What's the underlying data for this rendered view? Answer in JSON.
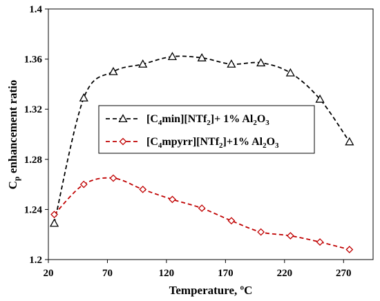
{
  "chart_data": {
    "type": "line",
    "title": "",
    "xlabel": "Temperature, ºC",
    "ylabel": "Cp enhancement ratio",
    "ylabel_main": "C",
    "ylabel_sub": "p",
    "ylabel_rest": " enhancement ratio",
    "xlim": [
      20,
      295
    ],
    "ylim": [
      1.2,
      1.4
    ],
    "xticks": [
      20,
      70,
      120,
      170,
      220,
      270
    ],
    "yticks": [
      1.2,
      1.24,
      1.28,
      1.32,
      1.36,
      1.4
    ],
    "grid": false,
    "legend_position": "center-left",
    "series": [
      {
        "name": "[C4min][NTf2]+ 1% Al2O3",
        "name_parts": [
          "[C",
          "4",
          "min][NTf",
          "2",
          "]+ 1% Al",
          "2",
          "O",
          "3"
        ],
        "color": "#000000",
        "marker": "triangle",
        "x": [
          25,
          50,
          75,
          100,
          125,
          150,
          175,
          200,
          225,
          250,
          275
        ],
        "y": [
          1.229,
          1.329,
          1.35,
          1.356,
          1.362,
          1.361,
          1.356,
          1.357,
          1.349,
          1.328,
          1.294
        ]
      },
      {
        "name": "[C4mpyrr][NTf2]+1% Al2O3",
        "name_parts": [
          "[C",
          "4",
          "mpyrr][NTf",
          "2",
          "]+1% Al",
          "2",
          "O",
          "3"
        ],
        "color": "#C00000",
        "marker": "diamond",
        "x": [
          25,
          50,
          75,
          100,
          125,
          150,
          175,
          200,
          225,
          250,
          275
        ],
        "y": [
          1.236,
          1.26,
          1.265,
          1.256,
          1.248,
          1.241,
          1.231,
          1.222,
          1.219,
          1.214,
          1.208
        ]
      }
    ]
  }
}
